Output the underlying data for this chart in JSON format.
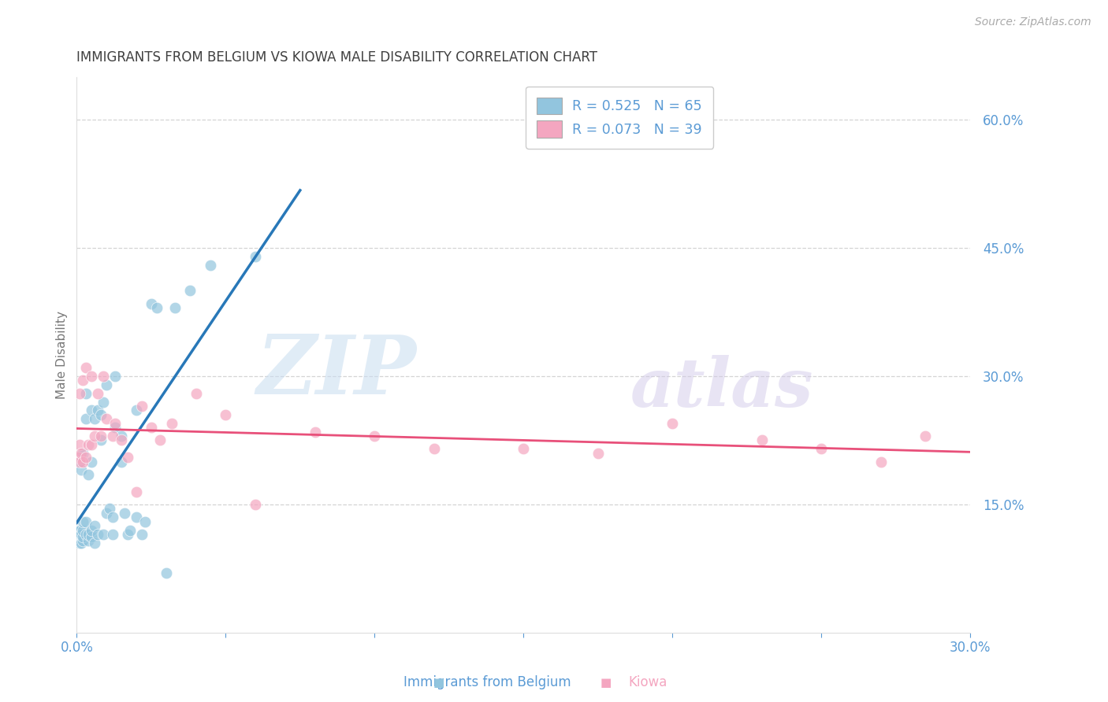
{
  "title": "IMMIGRANTS FROM BELGIUM VS KIOWA MALE DISABILITY CORRELATION CHART",
  "source": "Source: ZipAtlas.com",
  "ylabel": "Male Disability",
  "legend_labels": [
    "Immigrants from Belgium",
    "Kiowa"
  ],
  "legend_r": [
    0.525,
    0.073
  ],
  "legend_n": [
    65,
    39
  ],
  "blue_color": "#92c5de",
  "pink_color": "#f4a6c0",
  "blue_line_color": "#2878b8",
  "pink_line_color": "#e8507a",
  "axis_label_color": "#5b9bd5",
  "title_color": "#404040",
  "xlim": [
    0.0,
    0.3
  ],
  "ylim": [
    0.0,
    0.65
  ],
  "xticks": [
    0.0,
    0.05,
    0.1,
    0.15,
    0.2,
    0.25,
    0.3
  ],
  "xtick_labels": [
    "0.0%",
    "",
    "",
    "",
    "",
    "",
    "30.0%"
  ],
  "yticks_right": [
    0.15,
    0.3,
    0.45,
    0.6
  ],
  "ytick_labels_right": [
    "15.0%",
    "30.0%",
    "45.0%",
    "60.0%"
  ],
  "blue_x": [
    0.0003,
    0.0005,
    0.0005,
    0.0006,
    0.0007,
    0.0008,
    0.0008,
    0.001,
    0.001,
    0.001,
    0.001,
    0.001,
    0.0012,
    0.0013,
    0.0015,
    0.0015,
    0.0015,
    0.002,
    0.002,
    0.002,
    0.002,
    0.002,
    0.003,
    0.003,
    0.003,
    0.003,
    0.004,
    0.004,
    0.004,
    0.005,
    0.005,
    0.005,
    0.005,
    0.006,
    0.006,
    0.006,
    0.007,
    0.007,
    0.008,
    0.008,
    0.009,
    0.009,
    0.01,
    0.01,
    0.011,
    0.012,
    0.012,
    0.013,
    0.013,
    0.015,
    0.015,
    0.016,
    0.017,
    0.018,
    0.02,
    0.02,
    0.022,
    0.023,
    0.025,
    0.027,
    0.03,
    0.033,
    0.038,
    0.045,
    0.06
  ],
  "blue_y": [
    0.115,
    0.115,
    0.12,
    0.115,
    0.115,
    0.115,
    0.12,
    0.105,
    0.11,
    0.115,
    0.12,
    0.2,
    0.115,
    0.12,
    0.105,
    0.115,
    0.19,
    0.108,
    0.112,
    0.12,
    0.13,
    0.21,
    0.115,
    0.13,
    0.25,
    0.28,
    0.108,
    0.115,
    0.185,
    0.112,
    0.12,
    0.2,
    0.26,
    0.105,
    0.125,
    0.25,
    0.115,
    0.26,
    0.225,
    0.255,
    0.115,
    0.27,
    0.14,
    0.29,
    0.145,
    0.115,
    0.135,
    0.24,
    0.3,
    0.2,
    0.23,
    0.14,
    0.115,
    0.12,
    0.135,
    0.26,
    0.115,
    0.13,
    0.385,
    0.38,
    0.07,
    0.38,
    0.4,
    0.43,
    0.44
  ],
  "pink_x": [
    0.0005,
    0.001,
    0.001,
    0.001,
    0.0015,
    0.002,
    0.002,
    0.003,
    0.003,
    0.004,
    0.005,
    0.005,
    0.006,
    0.007,
    0.008,
    0.009,
    0.01,
    0.012,
    0.013,
    0.015,
    0.017,
    0.02,
    0.022,
    0.025,
    0.028,
    0.032,
    0.04,
    0.05,
    0.06,
    0.08,
    0.1,
    0.12,
    0.15,
    0.175,
    0.2,
    0.23,
    0.25,
    0.27,
    0.285
  ],
  "pink_y": [
    0.205,
    0.2,
    0.22,
    0.28,
    0.21,
    0.2,
    0.295,
    0.205,
    0.31,
    0.22,
    0.22,
    0.3,
    0.23,
    0.28,
    0.23,
    0.3,
    0.25,
    0.23,
    0.245,
    0.225,
    0.205,
    0.165,
    0.265,
    0.24,
    0.225,
    0.245,
    0.28,
    0.255,
    0.15,
    0.235,
    0.23,
    0.215,
    0.215,
    0.21,
    0.245,
    0.225,
    0.215,
    0.2,
    0.23
  ],
  "grid_color": "#d0d0d0",
  "bg_color": "#ffffff"
}
